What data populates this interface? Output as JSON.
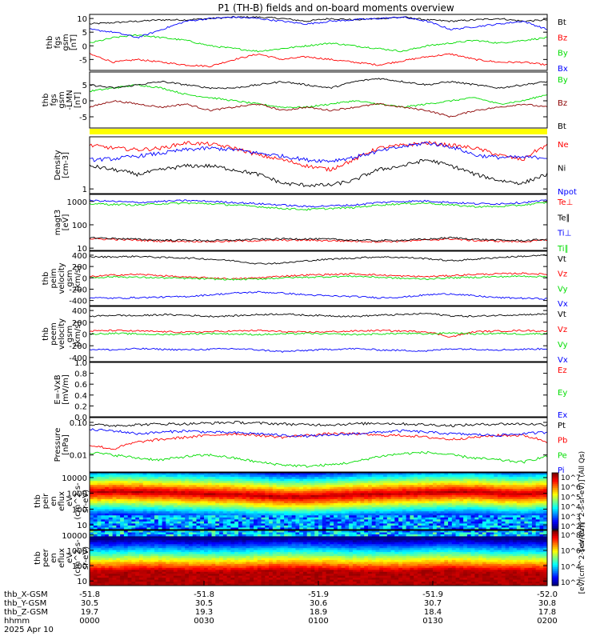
{
  "title": "P1 (TH-B) fields and on-board moments overview",
  "colors": {
    "black": "#000000",
    "red": "#ff0000",
    "green": "#00dd00",
    "blue": "#0000ff",
    "darkred": "#8b0000",
    "yellow": "#ffff00"
  },
  "chart_data": [
    {
      "type": "line",
      "ylabel": [
        "thb",
        "fgs",
        "gsm",
        "[nT]"
      ],
      "ylim": [
        -9,
        11.5
      ],
      "yticks": [
        "10",
        "5",
        "0",
        "-5"
      ],
      "ytick_values": [
        10,
        5,
        0,
        -5
      ],
      "series": [
        {
          "name": "Bt",
          "color": "#000000",
          "values": [
            8,
            8.5,
            9,
            9.5,
            9.5,
            10,
            10.5,
            10.5,
            10,
            9,
            10,
            9.5,
            10,
            10.5,
            9.5,
            9,
            9.5,
            10,
            9,
            9.5
          ]
        },
        {
          "name": "Bz",
          "color": "#ff0000",
          "values": [
            -3,
            -6,
            -5,
            -6,
            -7,
            -7.5,
            -5,
            -3,
            -5,
            -4,
            -5,
            -6,
            -7,
            -5.5,
            -4,
            -3,
            -5,
            -6,
            -6,
            -7
          ]
        },
        {
          "name": "By",
          "color": "#00dd00",
          "values": [
            1,
            3,
            4,
            3,
            2,
            0,
            -1,
            -2,
            -1,
            0,
            1,
            0,
            -1,
            -2,
            0,
            1,
            2,
            1,
            2,
            3
          ]
        },
        {
          "name": "Bx",
          "color": "#0000ff",
          "values": [
            6,
            5,
            3,
            6,
            9,
            10,
            10.5,
            10,
            9,
            8,
            9,
            9.5,
            10,
            10.5,
            9,
            6,
            7,
            8,
            9,
            6
          ]
        }
      ]
    },
    {
      "type": "line",
      "ylabel": [
        "thb",
        "fgs",
        "gsm",
        "-LMN",
        "[nT]"
      ],
      "ylim": [
        -8.5,
        9
      ],
      "yticks": [
        "5",
        "0",
        "-5"
      ],
      "ytick_values": [
        5,
        0,
        -5
      ],
      "series": [
        {
          "name": "By",
          "color": "#00dd00",
          "values": [
            3,
            4,
            5,
            4,
            2,
            1,
            0,
            -1,
            -2,
            -2,
            -1,
            0,
            -1,
            -2,
            -1,
            0,
            1,
            -1,
            0,
            2
          ]
        },
        {
          "name": "Bz",
          "color": "#8b0000",
          "values": [
            -2,
            0,
            -1,
            -2,
            -1,
            -3,
            -2,
            -1,
            -3,
            -2,
            -3,
            -2,
            -1,
            -2,
            -3,
            -5,
            -3,
            -2,
            -1,
            -2
          ]
        },
        {
          "name": "Bt",
          "color": "#000000",
          "values": [
            5,
            4,
            5,
            6,
            5,
            4,
            4,
            5,
            6,
            5,
            4,
            6,
            7,
            6,
            5,
            6,
            5,
            4,
            5,
            6
          ]
        }
      ]
    },
    {
      "type": "line",
      "log": true,
      "ylabel": [
        "Density",
        "[cm-3]"
      ],
      "ylim": [
        0.8,
        12
      ],
      "yticks": [
        "1"
      ],
      "ytick_values": [
        1
      ],
      "series": [
        {
          "name": "Ne",
          "color": "#ff0000",
          "values": [
            8,
            7,
            6.5,
            7,
            9,
            8.5,
            7,
            5,
            4,
            3,
            2.5,
            4,
            7,
            8,
            9,
            8,
            7,
            5,
            4,
            8
          ]
        },
        {
          "name": "Ni",
          "color": "#000000",
          "values": [
            3,
            2.5,
            2,
            2.5,
            3,
            3,
            2.5,
            2,
            1.3,
            1.2,
            1.2,
            1.5,
            2.5,
            3,
            4,
            3,
            2,
            1.5,
            1.3,
            2
          ]
        },
        {
          "name": "Npot",
          "color": "#0000ff",
          "values": [
            4,
            4.2,
            4.8,
            5.5,
            6.5,
            7,
            6.5,
            5.5,
            4.8,
            4,
            3.8,
            4.5,
            6,
            7.5,
            9,
            7.5,
            5,
            4.5,
            4.5,
            4.5
          ]
        }
      ],
      "extra_legend": []
    },
    {
      "type": "line",
      "log": true,
      "ylabel": [
        "magt3",
        "[eV]"
      ],
      "ylim": [
        8,
        2000
      ],
      "yticks": [
        "1000",
        "100",
        "10"
      ],
      "ytick_values": [
        1000,
        100,
        10
      ],
      "series": [
        {
          "name": "Te⊥",
          "color": "#ff0000",
          "values": [
            25,
            24,
            22,
            20,
            20,
            19,
            20,
            21,
            22,
            22,
            21,
            20,
            19,
            20,
            22,
            25,
            21,
            20,
            19,
            22
          ]
        },
        {
          "name": "Te∥",
          "color": "#000000",
          "values": [
            28,
            26,
            24,
            22,
            22,
            21,
            22,
            24,
            25,
            25,
            24,
            22,
            21,
            22,
            24,
            28,
            24,
            22,
            21,
            24
          ]
        },
        {
          "name": "Ti⊥",
          "color": "#0000ff",
          "values": [
            1100,
            1000,
            900,
            1000,
            1100,
            1000,
            900,
            800,
            700,
            600,
            650,
            700,
            900,
            1000,
            1050,
            900,
            800,
            800,
            900,
            1100
          ]
        },
        {
          "name": "Ti∥",
          "color": "#00dd00",
          "values": [
            800,
            750,
            700,
            800,
            850,
            800,
            700,
            600,
            500,
            450,
            500,
            550,
            700,
            800,
            850,
            700,
            600,
            600,
            700,
            900
          ]
        }
      ]
    },
    {
      "type": "line",
      "ylabel": [
        "thb",
        "peim",
        "velocity",
        "gsm",
        "[km/s]"
      ],
      "ylim": [
        -490,
        470
      ],
      "yticks": [
        "400",
        "200",
        "0",
        "-200",
        "-400"
      ],
      "ytick_values": [
        400,
        200,
        0,
        -200,
        -400
      ],
      "series": [
        {
          "name": "Vt",
          "color": "#000000",
          "values": [
            370,
            370,
            380,
            360,
            350,
            330,
            300,
            250,
            260,
            300,
            330,
            350,
            370,
            360,
            340,
            300,
            330,
            360,
            380,
            400
          ]
        },
        {
          "name": "Vz",
          "color": "#ff0000",
          "values": [
            20,
            50,
            60,
            40,
            10,
            0,
            -20,
            0,
            30,
            50,
            60,
            70,
            50,
            30,
            20,
            40,
            60,
            70,
            80,
            60
          ]
        },
        {
          "name": "Vy",
          "color": "#00dd00",
          "values": [
            0,
            20,
            10,
            0,
            -10,
            -20,
            -30,
            -20,
            0,
            10,
            20,
            30,
            10,
            -10,
            -20,
            0,
            10,
            20,
            30,
            20
          ]
        },
        {
          "name": "Vx",
          "color": "#0000ff",
          "values": [
            -350,
            -360,
            -350,
            -340,
            -330,
            -300,
            -270,
            -250,
            -270,
            -300,
            -320,
            -330,
            -350,
            -340,
            -300,
            -280,
            -320,
            -350,
            -360,
            -370
          ]
        }
      ]
    },
    {
      "type": "line",
      "ylabel": [
        "thb",
        "peem",
        "velocity",
        "gsm",
        "[km/s]"
      ],
      "ylim": [
        -470,
        470
      ],
      "yticks": [
        "400",
        "200",
        "0",
        "-200",
        "-400"
      ],
      "ytick_values": [
        400,
        200,
        0,
        -200,
        -400
      ],
      "series": [
        {
          "name": "Vt",
          "color": "#000000",
          "values": [
            300,
            320,
            310,
            330,
            320,
            300,
            310,
            330,
            340,
            320,
            310,
            300,
            320,
            330,
            350,
            310,
            300,
            320,
            330,
            340
          ]
        },
        {
          "name": "Vz",
          "color": "#ff0000",
          "values": [
            50,
            60,
            50,
            40,
            30,
            40,
            50,
            60,
            40,
            30,
            40,
            50,
            60,
            50,
            40,
            -50,
            40,
            50,
            60,
            50
          ]
        },
        {
          "name": "Vy",
          "color": "#00dd00",
          "values": [
            0,
            10,
            0,
            -10,
            0,
            10,
            0,
            -10,
            0,
            10,
            0,
            -10,
            0,
            10,
            0,
            20,
            0,
            10,
            0,
            10
          ]
        },
        {
          "name": "Vx",
          "color": "#0000ff",
          "values": [
            -260,
            -270,
            -250,
            -260,
            -270,
            -260,
            -250,
            -270,
            -300,
            -280,
            -260,
            -250,
            -270,
            -280,
            -290,
            -250,
            -260,
            -270,
            -260,
            -250
          ]
        }
      ]
    },
    {
      "type": "line",
      "ylabel": [
        "E=-VxB",
        "[mV/m]"
      ],
      "ylim": [
        0,
        1.0
      ],
      "yticks": [
        "1.0",
        "0.8",
        "0.6",
        "0.4",
        "0.2",
        "0.0"
      ],
      "ytick_values": [
        1.0,
        0.8,
        0.6,
        0.4,
        0.2,
        0.0
      ],
      "series": [
        {
          "name": "Ez",
          "color": "#ff0000",
          "values": []
        },
        {
          "name": "Ey",
          "color": "#00dd00",
          "values": []
        },
        {
          "name": "Ex",
          "color": "#0000ff",
          "values": []
        }
      ]
    },
    {
      "type": "line",
      "log": true,
      "ylabel": [
        "Pressure",
        "[nPa]"
      ],
      "ylim": [
        0.003,
        0.14
      ],
      "yticks": [
        "0.10",
        "0.01"
      ],
      "ytick_values": [
        0.1,
        0.01
      ],
      "series": [
        {
          "name": "Pt",
          "color": "#000000",
          "values": [
            0.085,
            0.08,
            0.085,
            0.09,
            0.09,
            0.095,
            0.1,
            0.095,
            0.09,
            0.085,
            0.085,
            0.09,
            0.095,
            0.09,
            0.085,
            0.08,
            0.085,
            0.09,
            0.09,
            0.085
          ]
        },
        {
          "name": "Pb",
          "color": "#ff0000",
          "values": [
            0.02,
            0.015,
            0.025,
            0.03,
            0.035,
            0.04,
            0.045,
            0.04,
            0.035,
            0.04,
            0.045,
            0.045,
            0.04,
            0.04,
            0.035,
            0.03,
            0.035,
            0.04,
            0.04,
            0.025
          ]
        },
        {
          "name": "Pe",
          "color": "#00dd00",
          "values": [
            0.012,
            0.01,
            0.008,
            0.007,
            0.009,
            0.01,
            0.008,
            0.006,
            0.005,
            0.0045,
            0.005,
            0.006,
            0.009,
            0.011,
            0.012,
            0.01,
            0.008,
            0.007,
            0.006,
            0.009
          ]
        },
        {
          "name": "Pi",
          "color": "#0000ff",
          "values": [
            0.06,
            0.055,
            0.045,
            0.05,
            0.055,
            0.05,
            0.048,
            0.045,
            0.04,
            0.038,
            0.04,
            0.045,
            0.05,
            0.055,
            0.05,
            0.045,
            0.042,
            0.04,
            0.045,
            0.05
          ]
        }
      ]
    },
    {
      "type": "heatmap",
      "ylabel": [
        "thb",
        "peir",
        "en",
        "eflux",
        "eV",
        "(cm^2-s-",
        "sr-eV)"
      ],
      "log": true,
      "ylim": [
        5,
        20000
      ],
      "yticks": [
        "10000",
        "1000",
        "100",
        "10"
      ],
      "ytick_values": [
        10000,
        1000,
        100,
        10
      ],
      "colorbar_ticks": [
        "10^7",
        "10^6",
        "10^5",
        "10^4",
        "10^3",
        "10^2"
      ],
      "colorbar_label": "[eV/(cm^2-s-sr-eV)] (All Qs)",
      "peak_energy_eV": [
        1200,
        1300,
        1200,
        1100,
        1000,
        900,
        850,
        700,
        600,
        600,
        700,
        800,
        900,
        1000,
        1100,
        1200,
        1200,
        1000,
        900,
        1100
      ]
    },
    {
      "type": "heatmap",
      "ylabel": [
        "thb",
        "peer",
        "en",
        "eflux",
        "eV",
        "(cm^2-s-",
        "sr-eV)"
      ],
      "log": true,
      "ylim": [
        5,
        20000
      ],
      "yticks": [
        "10000",
        "1000",
        "100",
        "10"
      ],
      "ytick_values": [
        10000,
        1000,
        100,
        10
      ],
      "colorbar_ticks": [
        "10^8",
        "10^6",
        "10^4",
        "10^2"
      ],
      "colorbar_label": "[eV/(cm^2-s-sr-eV)]",
      "peak_energy_eV": [
        40,
        40,
        45,
        45,
        40,
        40,
        40,
        45,
        50,
        50,
        45,
        40,
        40,
        40,
        45,
        50,
        45,
        40,
        40,
        40
      ]
    }
  ],
  "xaxis": {
    "rows": [
      {
        "label": "thb_X-GSM",
        "values": [
          "-51.8",
          "-51.8",
          "-51.9",
          "-51.9",
          "-52.0"
        ]
      },
      {
        "label": "thb_Y-GSM",
        "values": [
          "30.5",
          "30.5",
          "30.6",
          "30.7",
          "30.8"
        ]
      },
      {
        "label": "thb_Z-GSM",
        "values": [
          "19.7",
          "19.3",
          "18.9",
          "18.4",
          "17.8"
        ]
      },
      {
        "label": "hhmm",
        "values": [
          "0000",
          "0030",
          "0100",
          "0130",
          "0200"
        ]
      }
    ],
    "date": "2025 Apr 10"
  }
}
